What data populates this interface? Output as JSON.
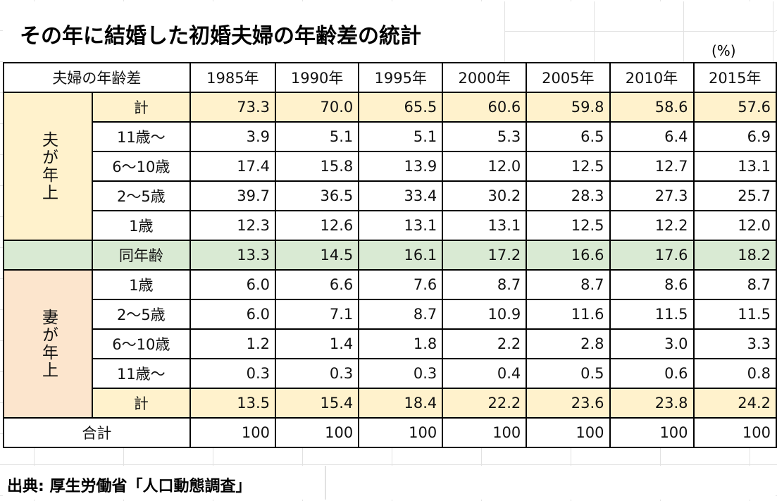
{
  "title": "その年に結婚した初婚夫婦の年齢差の統計",
  "unit": "(%)",
  "header": {
    "label": "夫婦の年齢差",
    "years": [
      "1985年",
      "1990年",
      "1995年",
      "2000年",
      "2005年",
      "2010年",
      "2015年"
    ]
  },
  "groups": {
    "husband_older": "夫が年上",
    "wife_older": "妻が年上"
  },
  "rows": [
    {
      "label": "計",
      "values": [
        "73.3",
        "70.0",
        "65.5",
        "60.6",
        "59.8",
        "58.6",
        "57.6"
      ]
    },
    {
      "label": "11歳～",
      "values": [
        "3.9",
        "5.1",
        "5.1",
        "5.3",
        "6.5",
        "6.4",
        "6.9"
      ]
    },
    {
      "label": "6～10歳",
      "values": [
        "17.4",
        "15.8",
        "13.9",
        "12.0",
        "12.5",
        "12.7",
        "13.1"
      ]
    },
    {
      "label": "2～5歳",
      "values": [
        "39.7",
        "36.5",
        "33.4",
        "30.2",
        "28.3",
        "27.3",
        "25.7"
      ]
    },
    {
      "label": "1歳",
      "values": [
        "12.3",
        "12.6",
        "13.1",
        "13.1",
        "12.5",
        "12.2",
        "12.0"
      ]
    },
    {
      "label": "同年齢",
      "values": [
        "13.3",
        "14.5",
        "16.1",
        "17.2",
        "16.6",
        "17.6",
        "18.2"
      ]
    },
    {
      "label": "1歳",
      "values": [
        "6.0",
        "6.6",
        "7.6",
        "8.7",
        "8.7",
        "8.6",
        "8.7"
      ]
    },
    {
      "label": "2～5歳",
      "values": [
        "6.0",
        "7.1",
        "8.7",
        "10.9",
        "11.6",
        "11.5",
        "11.5"
      ]
    },
    {
      "label": "6～10歳",
      "values": [
        "1.2",
        "1.4",
        "1.8",
        "2.2",
        "2.8",
        "3.0",
        "3.3"
      ]
    },
    {
      "label": "11歳～",
      "values": [
        "0.3",
        "0.3",
        "0.3",
        "0.4",
        "0.5",
        "0.6",
        "0.8"
      ]
    },
    {
      "label": "計",
      "values": [
        "13.5",
        "15.4",
        "18.4",
        "22.2",
        "23.6",
        "23.8",
        "24.2"
      ]
    },
    {
      "label": "合計",
      "values": [
        "100",
        "100",
        "100",
        "100",
        "100",
        "100",
        "100"
      ]
    }
  ],
  "source": "出典: 厚生労働省「人口動態調査」",
  "colors": {
    "subtotal": "#fff2cc",
    "same_age": "#d9ead3",
    "wife_group": "#fce5cd",
    "husband_group": "#fff2cc"
  }
}
